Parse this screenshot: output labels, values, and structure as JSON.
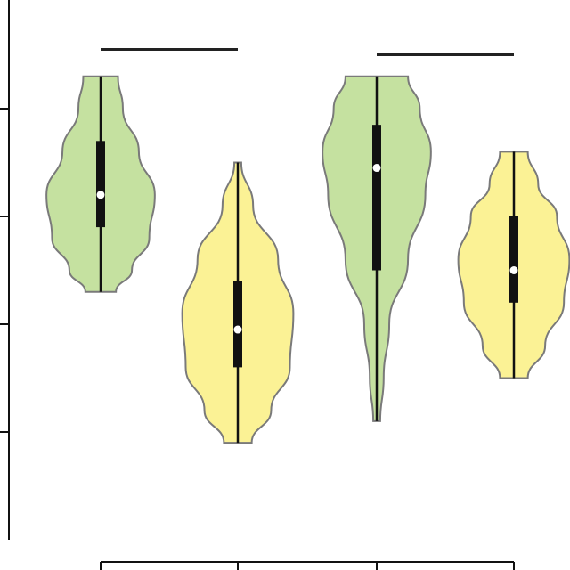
{
  "chart_data": {
    "type": "violin",
    "title": "",
    "xlabel": "",
    "ylabel": "",
    "ylim": [
      0,
      5
    ],
    "y_ticks": [
      1,
      2,
      3,
      4
    ],
    "colors": {
      "green": "#c5e1a0",
      "yellow": "#fbf295",
      "outline": "#7a7a7a",
      "box": "#111111",
      "median": "#ffffff"
    },
    "violins": [
      {
        "fill": "green",
        "min": 2.3,
        "max": 4.3,
        "q1": 2.9,
        "q3": 3.7,
        "median": 3.2,
        "profile": [
          [
            2.3,
            0.22
          ],
          [
            2.5,
            0.45
          ],
          [
            2.8,
            0.7
          ],
          [
            3.2,
            0.78
          ],
          [
            3.6,
            0.55
          ],
          [
            4.0,
            0.32
          ],
          [
            4.3,
            0.25
          ]
        ]
      },
      {
        "fill": "yellow",
        "min": 0.9,
        "max": 3.5,
        "q1": 1.6,
        "q3": 2.4,
        "median": 1.95,
        "profile": [
          [
            0.9,
            0.2
          ],
          [
            1.2,
            0.48
          ],
          [
            1.6,
            0.75
          ],
          [
            2.1,
            0.8
          ],
          [
            2.6,
            0.58
          ],
          [
            3.1,
            0.22
          ],
          [
            3.5,
            0.05
          ]
        ]
      },
      {
        "fill": "green",
        "min": 1.1,
        "max": 4.3,
        "q1": 2.5,
        "q3": 3.85,
        "median": 3.45,
        "profile": [
          [
            1.1,
            0.05
          ],
          [
            1.5,
            0.1
          ],
          [
            2.0,
            0.18
          ],
          [
            2.6,
            0.45
          ],
          [
            3.2,
            0.7
          ],
          [
            3.6,
            0.78
          ],
          [
            4.0,
            0.62
          ],
          [
            4.3,
            0.45
          ]
        ]
      },
      {
        "fill": "yellow",
        "min": 1.5,
        "max": 3.6,
        "q1": 2.2,
        "q3": 3.0,
        "median": 2.5,
        "profile": [
          [
            1.5,
            0.2
          ],
          [
            1.8,
            0.45
          ],
          [
            2.2,
            0.72
          ],
          [
            2.6,
            0.8
          ],
          [
            3.0,
            0.62
          ],
          [
            3.3,
            0.35
          ],
          [
            3.6,
            0.2
          ]
        ]
      }
    ],
    "brackets": [
      {
        "from": 0,
        "to": 1,
        "y": 4.55
      },
      {
        "from": 2,
        "to": 3,
        "y": 4.5
      }
    ]
  }
}
